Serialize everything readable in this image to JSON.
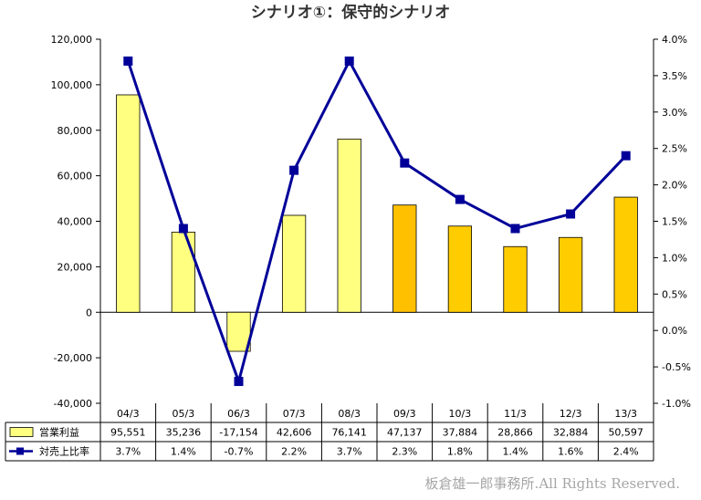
{
  "chart_data": {
    "type": "bar",
    "title": "シナリオ①：保守的シナリオ",
    "categories": [
      "04/3",
      "05/3",
      "06/3",
      "07/3",
      "08/3",
      "09/3",
      "10/3",
      "11/3",
      "12/3",
      "13/3"
    ],
    "series": [
      {
        "name": "営業利益",
        "type": "bar",
        "axis": "left",
        "values": [
          95551,
          35236,
          -17154,
          42606,
          76141,
          47137,
          37884,
          28866,
          32884,
          50597
        ],
        "labels": [
          "95,551",
          "35,236",
          "-17,154",
          "42,606",
          "76,141",
          "47,137",
          "37,884",
          "28,866",
          "32,884",
          "50,597"
        ],
        "colors": [
          "#ffff80",
          "#ffff80",
          "#ffff80",
          "#ffff80",
          "#ffff80",
          "#ffc000",
          "#ffcc00",
          "#ffcc00",
          "#ffcc00",
          "#ffcc00"
        ]
      },
      {
        "name": "対売上比率",
        "type": "line",
        "axis": "right",
        "values": [
          3.7,
          1.4,
          -0.7,
          2.2,
          3.7,
          2.3,
          1.8,
          1.4,
          1.6,
          2.4
        ],
        "labels": [
          "3.7%",
          "1.4%",
          "-0.7%",
          "2.2%",
          "3.7%",
          "2.3%",
          "1.8%",
          "1.4%",
          "1.6%",
          "2.4%"
        ],
        "color": "#000099"
      }
    ],
    "left_axis": {
      "range": [
        -40000,
        120000
      ],
      "ticks": [
        120000,
        100000,
        80000,
        60000,
        40000,
        20000,
        0,
        -20000,
        -40000
      ],
      "tick_labels": [
        "120,000",
        "100,000",
        "80,000",
        "60,000",
        "40,000",
        "20,000",
        "0",
        "-20,000",
        "-40,000"
      ]
    },
    "right_axis": {
      "range": [
        -1.0,
        4.0
      ],
      "ticks": [
        4.0,
        3.5,
        3.0,
        2.5,
        2.0,
        1.5,
        1.0,
        0.5,
        0.0,
        -0.5,
        -1.0
      ],
      "tick_labels": [
        "4.0%",
        "3.5%",
        "3.0%",
        "2.5%",
        "2.0%",
        "1.5%",
        "1.0%",
        "0.5%",
        "0.0%",
        "-0.5%",
        "-1.0%"
      ]
    },
    "grid": false,
    "legend": "data-table-left"
  },
  "footer": {
    "copyright": "板倉雄一郎事務所.All Rights Reserved."
  }
}
